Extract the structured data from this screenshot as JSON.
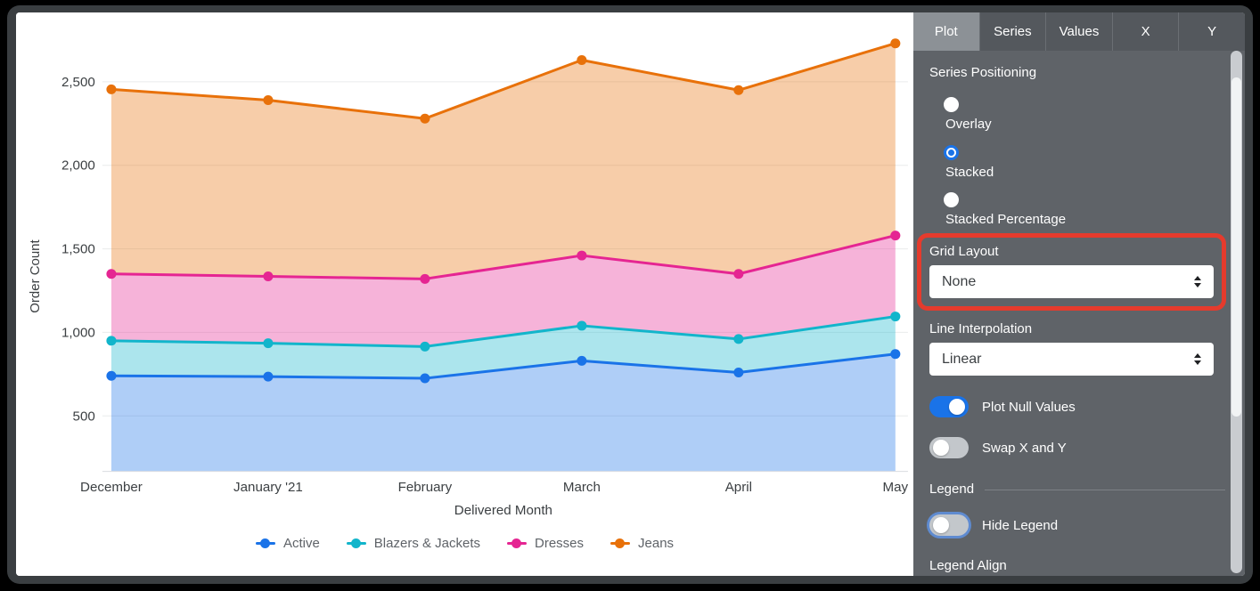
{
  "chart_data": {
    "type": "area",
    "stacked": true,
    "title": "",
    "xlabel": "Delivered Month",
    "ylabel": "Order Count",
    "categories": [
      "December",
      "January '21",
      "February",
      "March",
      "April",
      "May"
    ],
    "y_ticks": [
      {
        "label": "500",
        "value": 500
      },
      {
        "label": "1,000",
        "value": 1000
      },
      {
        "label": "1,500",
        "value": 1500
      },
      {
        "label": "2,000",
        "value": 2000
      },
      {
        "label": "2,500",
        "value": 2500
      }
    ],
    "ylim_visible": [
      170,
      2780
    ],
    "grid": "horizontal-only",
    "legend_position": "bottom",
    "series": [
      {
        "name": "Active",
        "color": "#1A73E8",
        "values": [
          740,
          735,
          725,
          830,
          760,
          870
        ]
      },
      {
        "name": "Blazers & Jackets",
        "color": "#12B5CB",
        "values": [
          210,
          200,
          190,
          210,
          200,
          225
        ]
      },
      {
        "name": "Dresses",
        "color": "#E52592",
        "values": [
          400,
          400,
          405,
          420,
          390,
          485
        ]
      },
      {
        "name": "Jeans",
        "color": "#E8710A",
        "values": [
          1105,
          1055,
          960,
          1170,
          1100,
          1150
        ]
      }
    ],
    "stacked_totals": [
      2455,
      2390,
      2280,
      2630,
      2450,
      2730
    ]
  },
  "panel": {
    "tabs": [
      {
        "label": "Plot",
        "active": true
      },
      {
        "label": "Series",
        "active": false
      },
      {
        "label": "Values",
        "active": false
      },
      {
        "label": "X",
        "active": false
      },
      {
        "label": "Y",
        "active": false
      }
    ],
    "series_positioning": {
      "label": "Series Positioning",
      "options": [
        {
          "label": "Overlay",
          "selected": false
        },
        {
          "label": "Stacked",
          "selected": true
        },
        {
          "label": "Stacked Percentage",
          "selected": false
        }
      ]
    },
    "grid_layout": {
      "label": "Grid Layout",
      "value": "None",
      "highlighted": true
    },
    "line_interpolation": {
      "label": "Line Interpolation",
      "value": "Linear"
    },
    "plot_null_values": {
      "label": "Plot Null Values",
      "on": true
    },
    "swap_x_y": {
      "label": "Swap X and Y",
      "on": false
    },
    "legend_section": {
      "label": "Legend"
    },
    "hide_legend": {
      "label": "Hide Legend",
      "on": false
    },
    "legend_align": {
      "label": "Legend Align"
    }
  },
  "annotation": {
    "type": "highlight-box",
    "target": "Grid Layout dropdown",
    "color": "#E53B2D"
  },
  "colors": {
    "panel_bg": "#5F6368",
    "tabbar_bg": "#54585D",
    "active_tab_bg": "#8C9196",
    "toggle_on": "#1A73E8",
    "radio_selected": "#1A73E8",
    "chart_bg": "#FFFFFF"
  }
}
